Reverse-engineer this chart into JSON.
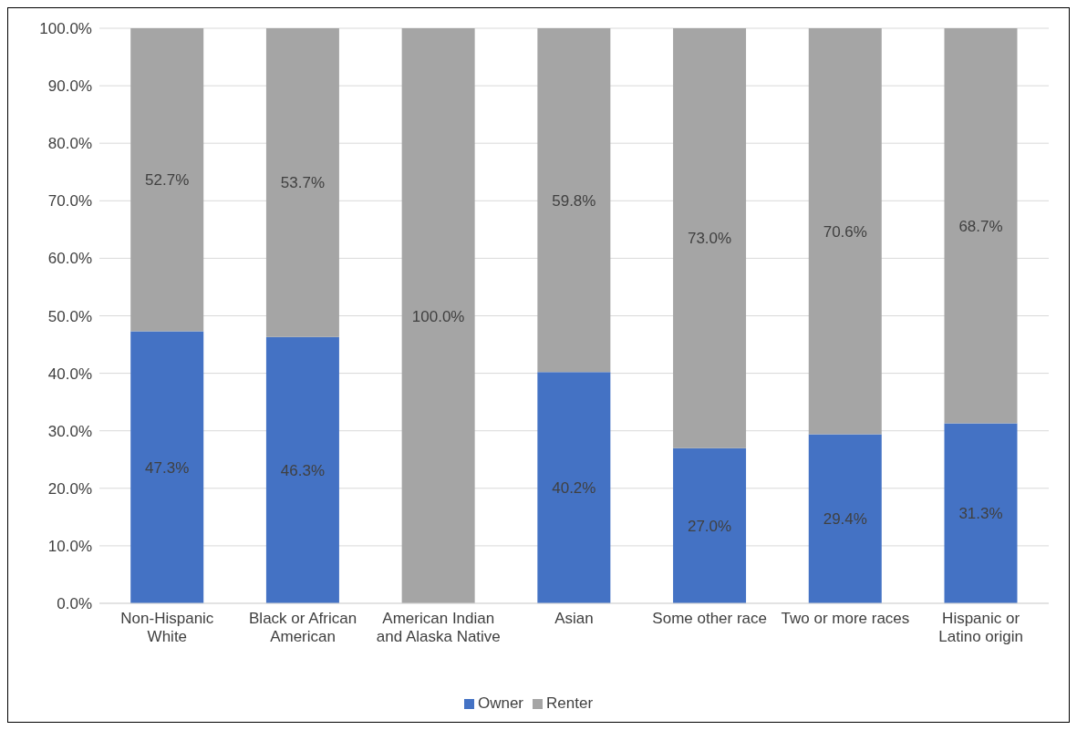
{
  "chart_data": {
    "type": "bar",
    "stacked": true,
    "categories": [
      "Non-Hispanic White",
      "Black or African American",
      "American Indian and Alaska Native",
      "Asian",
      "Some other race",
      "Two or more races",
      "Hispanic or Latino origin"
    ],
    "series": [
      {
        "name": "Owner",
        "color": "#4472c4",
        "values": [
          47.3,
          46.3,
          0,
          40.2,
          27.0,
          29.4,
          31.3
        ],
        "value_labels": [
          "47.3%",
          "46.3%",
          null,
          "40.2%",
          "27.0%",
          "29.4%",
          "31.3%"
        ]
      },
      {
        "name": "Renter",
        "color": "#a5a5a5",
        "values": [
          52.7,
          53.7,
          100.0,
          59.8,
          73.0,
          70.6,
          68.7
        ],
        "value_labels": [
          "52.7%",
          "53.7%",
          "100.0%",
          "59.8%",
          "73.0%",
          "70.6%",
          "68.7%"
        ]
      }
    ],
    "ylim": [
      0,
      100
    ],
    "yticks": [
      {
        "value": 0,
        "label": "0.0%"
      },
      {
        "value": 10,
        "label": "10.0%"
      },
      {
        "value": 20,
        "label": "20.0%"
      },
      {
        "value": 30,
        "label": "30.0%"
      },
      {
        "value": 40,
        "label": "40.0%"
      },
      {
        "value": 50,
        "label": "50.0%"
      },
      {
        "value": 60,
        "label": "60.0%"
      },
      {
        "value": 70,
        "label": "70.0%"
      },
      {
        "value": 80,
        "label": "80.0%"
      },
      {
        "value": 90,
        "label": "90.0%"
      },
      {
        "value": 100,
        "label": "100.0%"
      }
    ],
    "grid": "y",
    "legend": "bottom"
  }
}
